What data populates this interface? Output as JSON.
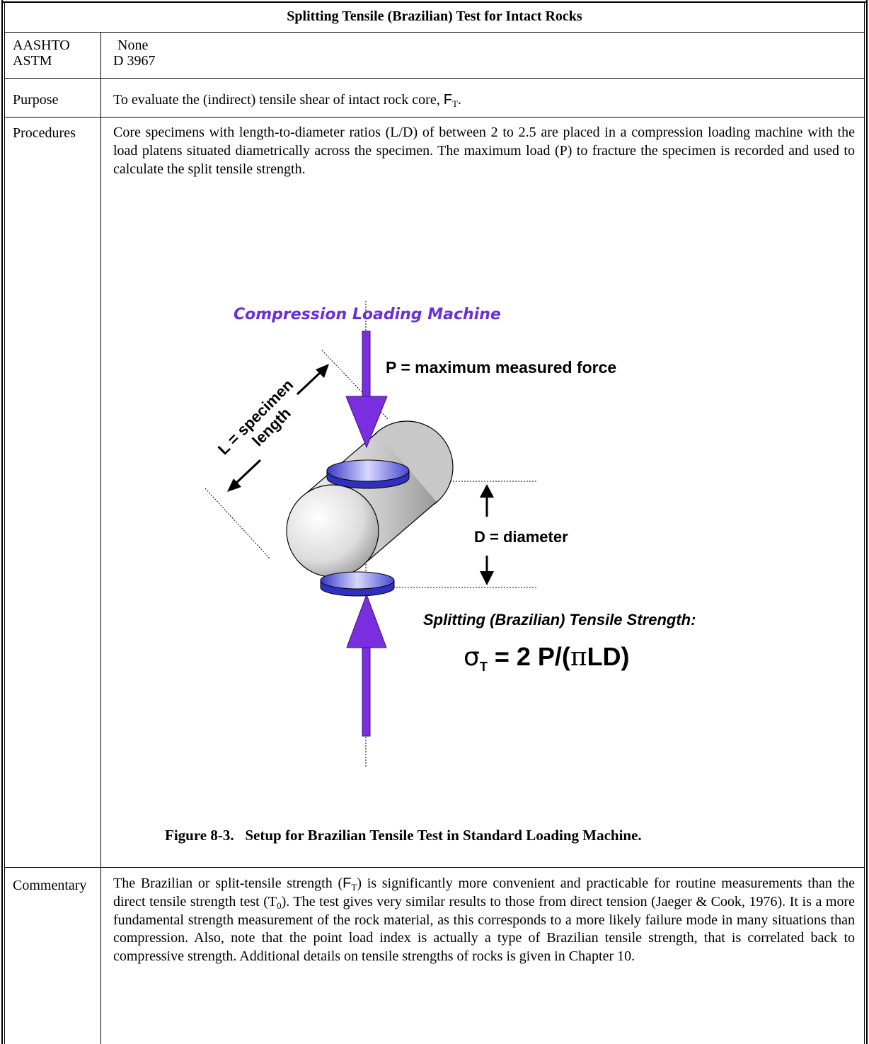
{
  "title": "Splitting Tensile (Brazilian) Test for Intact Rocks",
  "standards": {
    "labels": [
      "AASHTO",
      "ASTM"
    ],
    "values": [
      "None",
      "D 3967"
    ]
  },
  "purpose": {
    "label": "Purpose",
    "text": [
      "To evaluate the (indirect) tensile shear of intact rock core, ",
      "F",
      "T",
      "."
    ]
  },
  "procedures": {
    "label": "Procedures",
    "text": "Core specimens with length-to-diameter ratios (L/D) of between 2 to 2.5 are placed in a compression loading machine with the load platens situated diametrically across the specimen.  The maximum load (P) to fracture the specimen is recorded and used to calculate the split tensile strength.",
    "figure": {
      "machine": "Compression Loading Machine",
      "force": "P = maximum measured force",
      "length": [
        "L = specimen",
        "length"
      ],
      "diameter": "D = diameter",
      "strength_title": "Splitting (Brazilian) Tensile Strength:",
      "formula": [
        "σ",
        "T",
        " = 2 P/(",
        "π",
        "LD)"
      ],
      "caption": "Figure 8-3.   Setup for Brazilian Tensile Test in Standard Loading Machine."
    }
  },
  "commentary": {
    "label": "Commentary",
    "text": [
      "The Brazilian or split-tensile strength (",
      "F",
      "T",
      ") is significantly more convenient and practicable for routine measurements than the direct tensile strength test (",
      "T",
      "0",
      ").  The test gives very similar results to those from direct tension (Jaeger & Cook, 1976). It is a more fundamental strength measurement of the rock material, as this corresponds to a more likely failure mode in many situations than compression.  Also, note that the point load index is actually a type of Brazilian tensile strength, that is correlated back to compressive strength.  Additional details on tensile strengths of rocks is given in Chapter 10."
    ]
  }
}
